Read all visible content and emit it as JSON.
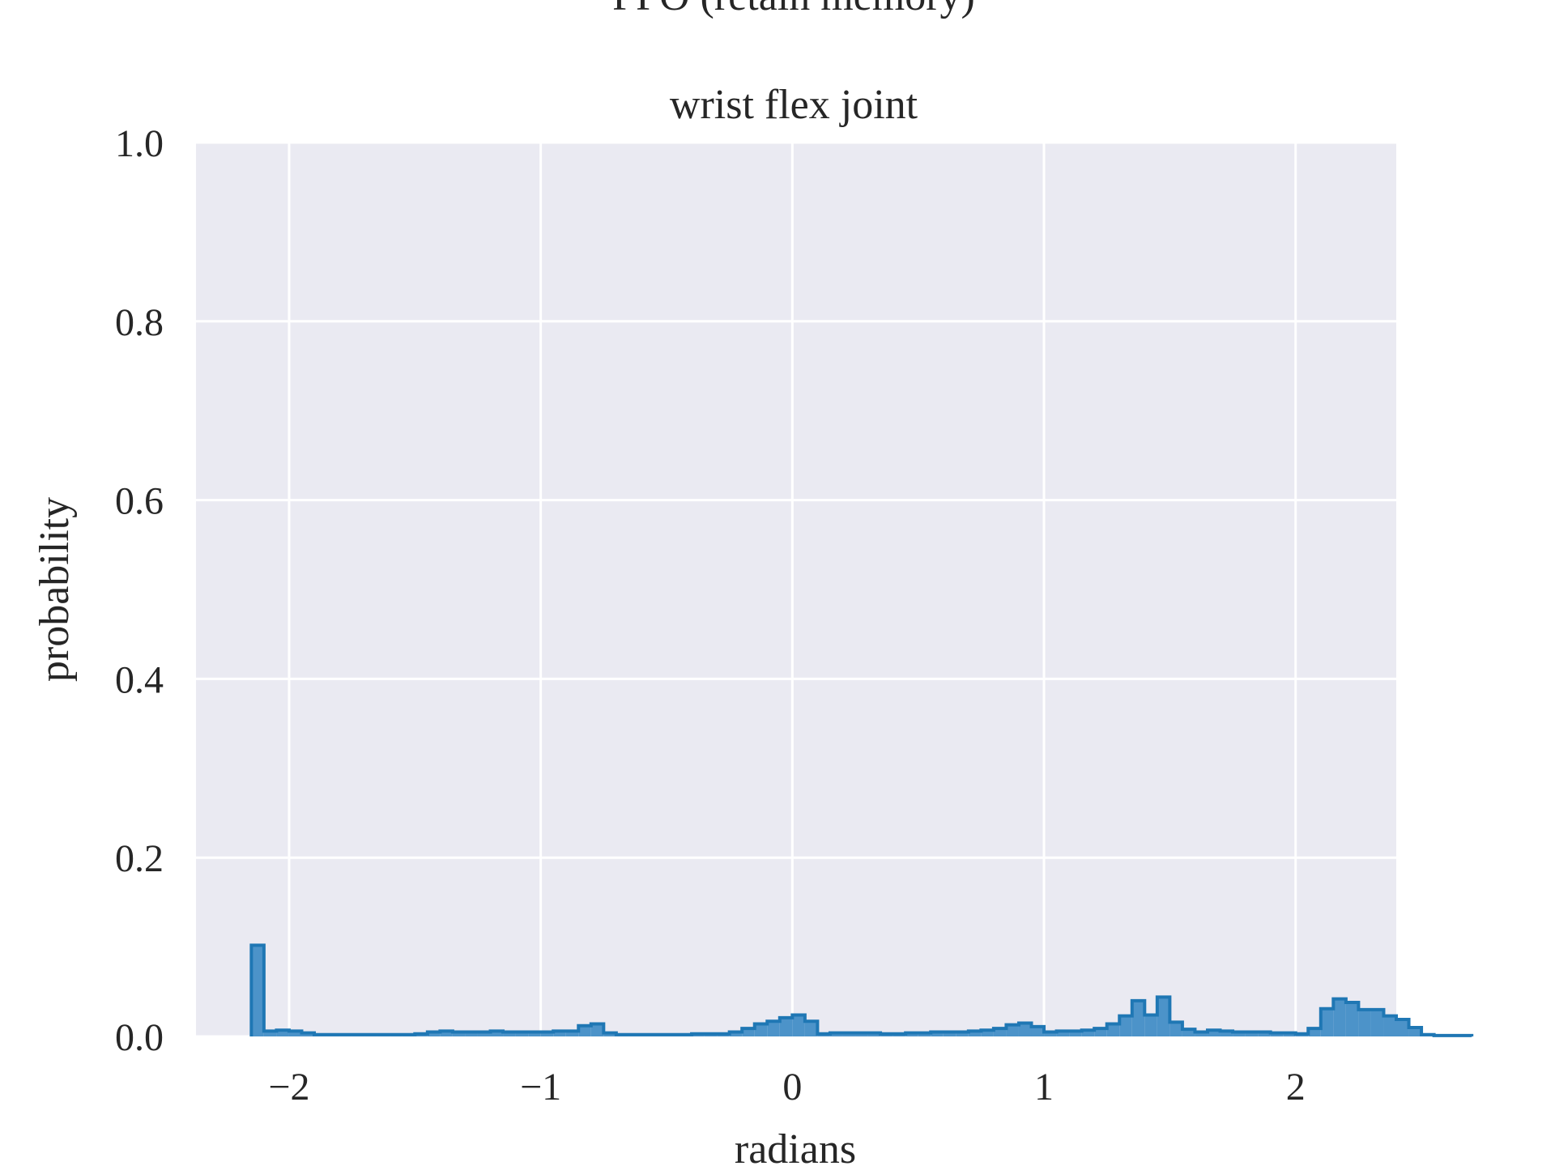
{
  "chart_data": {
    "type": "histogram",
    "suptitle": "PPO (retain memory)",
    "title": "wrist flex joint",
    "xlabel": "radians",
    "ylabel": "probability",
    "xlim": [
      -2.37,
      2.4
    ],
    "ylim": [
      0.0,
      1.0
    ],
    "xticks": [
      -2,
      -1,
      0,
      1,
      2
    ],
    "xtick_labels": [
      "−2",
      "−1",
      "0",
      "1",
      "2"
    ],
    "yticks": [
      0.0,
      0.2,
      0.4,
      0.6,
      0.8,
      1.0
    ],
    "ytick_labels": [
      "0.0",
      "0.2",
      "0.4",
      "0.6",
      "0.8",
      "1.0"
    ],
    "grid": true,
    "colors": {
      "fill": "#4c93c9",
      "edge": "#1f77b4",
      "background": "#eaeaf2",
      "grid": "#ffffff"
    },
    "bin_start": -2.15,
    "bin_width": 0.05,
    "values": [
      0.102,
      0.006,
      0.007,
      0.006,
      0.004,
      0.002,
      0.002,
      0.002,
      0.002,
      0.002,
      0.002,
      0.002,
      0.002,
      0.003,
      0.005,
      0.006,
      0.005,
      0.005,
      0.005,
      0.006,
      0.005,
      0.005,
      0.005,
      0.005,
      0.006,
      0.006,
      0.012,
      0.014,
      0.004,
      0.002,
      0.002,
      0.002,
      0.002,
      0.002,
      0.002,
      0.003,
      0.003,
      0.003,
      0.005,
      0.009,
      0.014,
      0.017,
      0.021,
      0.024,
      0.017,
      0.003,
      0.004,
      0.004,
      0.004,
      0.004,
      0.003,
      0.003,
      0.004,
      0.004,
      0.005,
      0.005,
      0.005,
      0.006,
      0.007,
      0.009,
      0.013,
      0.015,
      0.011,
      0.005,
      0.006,
      0.006,
      0.007,
      0.009,
      0.014,
      0.023,
      0.04,
      0.024,
      0.044,
      0.016,
      0.008,
      0.005,
      0.007,
      0.006,
      0.005,
      0.005,
      0.005,
      0.004,
      0.004,
      0.003,
      0.009,
      0.031,
      0.042,
      0.038,
      0.03,
      0.03,
      0.023,
      0.019,
      0.01,
      0.002,
      0.001,
      0.001,
      0.001
    ]
  }
}
